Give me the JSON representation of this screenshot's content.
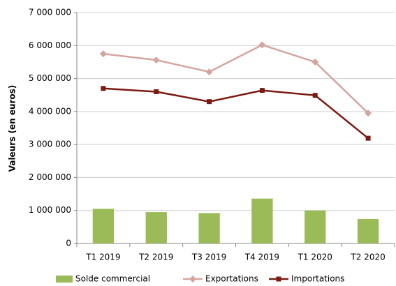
{
  "chart_data": {
    "type": "bar",
    "y_label": "Valeurs (en euros)",
    "categories": [
      "T1 2019",
      "T2 2019",
      "T3 2019",
      "T4 2019",
      "T1 2020",
      "T2 2020"
    ],
    "series": [
      {
        "name": "Solde commercial",
        "type": "bar",
        "color": "#9bbb59",
        "values": [
          1050000,
          950000,
          920000,
          1360000,
          1000000,
          740000
        ]
      },
      {
        "name": "Exportations",
        "type": "line",
        "marker": "diamond",
        "color": "#d4a5a0",
        "values": [
          5750000,
          5560000,
          5200000,
          6020000,
          5500000,
          3950000
        ]
      },
      {
        "name": "Importations",
        "type": "line",
        "marker": "square",
        "color": "#7b1a12",
        "values": [
          4700000,
          4600000,
          4300000,
          4640000,
          4490000,
          3190000
        ]
      }
    ],
    "ylim": [
      0,
      7000000
    ],
    "yticks": [
      {
        "value": 0,
        "label": "0"
      },
      {
        "value": 1000000,
        "label": "1 000 000"
      },
      {
        "value": 2000000,
        "label": "2 000 000"
      },
      {
        "value": 3000000,
        "label": "3 000 000"
      },
      {
        "value": 4000000,
        "label": "4 000 000"
      },
      {
        "value": 5000000,
        "label": "5 000 000"
      },
      {
        "value": 6000000,
        "label": "6 000 000"
      },
      {
        "value": 7000000,
        "label": "7 000 000"
      }
    ],
    "grid": true,
    "legend": "bottom"
  }
}
